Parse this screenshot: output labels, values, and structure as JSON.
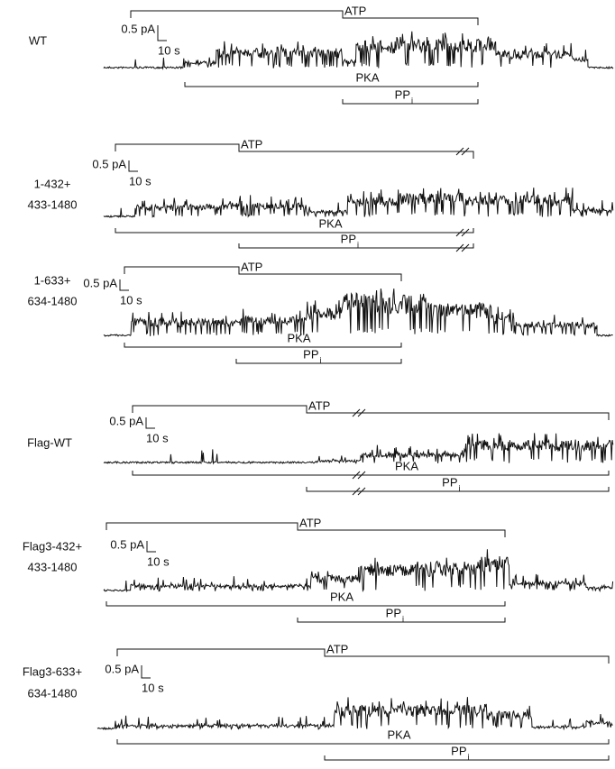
{
  "panels": [
    {
      "label": [
        "WT"
      ],
      "scale_y": "0.5 pA",
      "scale_x": "10 s",
      "atp": "ATP",
      "pka": "PKA",
      "pp": {
        "text": "PP",
        "sub": "i"
      }
    },
    {
      "label": [
        "1-432+",
        "433-1480"
      ],
      "scale_y": "0.5 pA",
      "scale_x": "10 s",
      "atp": "ATP",
      "pka": "PKA",
      "pp": {
        "text": "PP",
        "sub": "i"
      }
    },
    {
      "label": [
        "1-633+",
        "634-1480"
      ],
      "scale_y": "0.5 pA",
      "scale_x": "10 s",
      "atp": "ATP",
      "pka": "PKA",
      "pp": {
        "text": "PP",
        "sub": "i"
      }
    },
    {
      "label": [
        "Flag-WT"
      ],
      "scale_y": "0.5 pA",
      "scale_x": "10 s",
      "atp": "ATP",
      "pka": "PKA",
      "pp": {
        "text": "PP",
        "sub": "i"
      }
    },
    {
      "label": [
        "Flag3-432+",
        "433-1480"
      ],
      "scale_y": "0.5 pA",
      "scale_x": "10 s",
      "atp": "ATP",
      "pka": "PKA",
      "pp": {
        "text": "PP",
        "sub": "i"
      }
    },
    {
      "label": [
        "Flag3-633+",
        "634-1480"
      ],
      "scale_y": "0.5 pA",
      "scale_x": "10 s",
      "atp": "ATP",
      "pka": "PKA",
      "pp": {
        "text": "PP",
        "sub": "i"
      }
    }
  ]
}
